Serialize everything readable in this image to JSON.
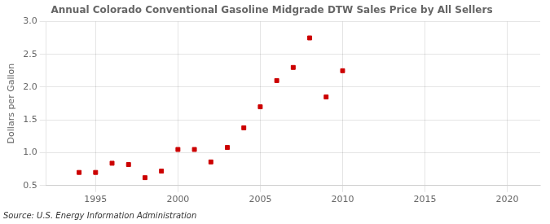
{
  "chart_data": {
    "type": "scatter",
    "title": "Annual Colorado Conventional Gasoline Midgrade DTW Sales Price by All Sellers",
    "ylabel": "Dollars per Gallon",
    "source": "Source: U.S. Energy Information Administration",
    "x": [
      1994,
      1995,
      1996,
      1997,
      1998,
      1999,
      2000,
      2001,
      2002,
      2003,
      2004,
      2005,
      2006,
      2007,
      2008,
      2009,
      2010
    ],
    "values": [
      0.7,
      0.7,
      0.84,
      0.82,
      0.62,
      0.72,
      1.05,
      1.05,
      0.86,
      1.08,
      1.38,
      1.7,
      2.1,
      2.3,
      2.75,
      1.85,
      2.25
    ],
    "color": "#cc0000",
    "marker": "square",
    "xlim": [
      1992,
      2022
    ],
    "ylim": [
      0.5,
      3.0
    ],
    "xticks": [
      1995,
      2000,
      2005,
      2010,
      2015,
      2020
    ],
    "yticks": [
      0.5,
      {
        "value": 1,
        "label": "1.0"
      },
      1.5,
      {
        "value": 2,
        "label": "2.0"
      },
      2.5,
      {
        "value": 3,
        "label": "3.0"
      }
    ],
    "grid": true
  }
}
